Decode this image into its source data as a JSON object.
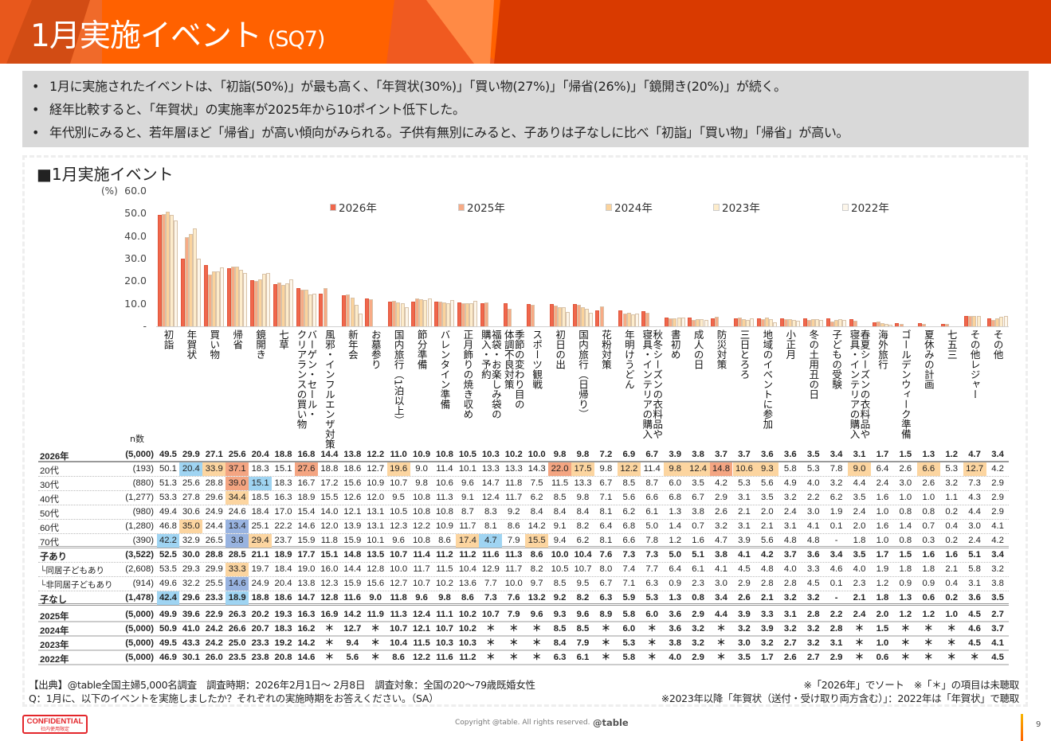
{
  "header": {
    "title": "1月実施イベント",
    "code": "(SQ7)"
  },
  "summary": [
    "1月に実施されたイベントは、「初詣(50%)」が最も高く、「年賀状(30%)」「買い物(27%)」「帰省(26%)」「鏡開き(20%)」が続く。",
    "経年比較すると、「年賀状」の実施率が2025年から10ポイント低下した。",
    "年代別にみると、若年層ほど「帰省」が高い傾向がみられる。子供有無別にみると、子ありは子なしに比べ「初詣」「買い物」「帰省」が高い。"
  ],
  "chart_data": {
    "type": "bar",
    "title": "■1月実施イベント",
    "ylabel": "(%)",
    "ylim": [
      0,
      60
    ],
    "yticks": [
      "60.0",
      "50.0",
      "40.0",
      "30.0",
      "20.0",
      "10.0",
      "-"
    ],
    "legend_position": "top",
    "n_label": "n数",
    "categories": [
      "初詣",
      "年賀状",
      "買い物",
      "帰省",
      "鏡開き",
      "七草",
      "バーゲン・セール・\nクリアランスの買い物",
      "風邪・インフルエンザ対策",
      "新年会",
      "お墓参り",
      "国内旅行（1泊以上）",
      "節分準備",
      "バレンタイン準備",
      "正月飾りの焼き収め",
      "福袋・お楽しみ袋の\n購入・予約",
      "季節の変わり目の\n体調不良対策",
      "スポーツ観戦",
      "初日の出",
      "国内旅行（日帰り）",
      "花粉対策",
      "年明けうどん",
      "秋冬シーズンの衣料品や\n寝具・インテリアの購入",
      "書初め",
      "成人の日",
      "防災対策",
      "三日とろろ",
      "地域のイベントに参加",
      "小正月",
      "冬の土用丑の日",
      "子どもの受験",
      "春夏シーズンの衣料品や\n寝具・インテリアの購入",
      "海外旅行",
      "ゴールデンウィーク準備",
      "夏休みの計画",
      "七五三",
      "その他レジャー",
      "その他"
    ],
    "series_colors": [
      "#f0674c",
      "#f7ab86",
      "#fbd39c",
      "#fdeccb",
      "#fdf6ea"
    ],
    "rows": [
      {
        "label": "2026年",
        "n": "(5,000)",
        "bold": true,
        "series": true,
        "values": [
          "49.5",
          "29.9",
          "27.1",
          "25.6",
          "20.4",
          "18.8",
          "16.8",
          "14.4",
          "13.8",
          "12.2",
          "11.0",
          "10.9",
          "10.8",
          "10.5",
          "10.3",
          "10.2",
          "10.0",
          "9.8",
          "9.8",
          "7.2",
          "6.9",
          "6.7",
          "3.9",
          "3.8",
          "3.7",
          "3.7",
          "3.6",
          "3.6",
          "3.5",
          "3.4",
          "3.1",
          "1.7",
          "1.5",
          "1.3",
          "1.2",
          "4.7",
          "3.4"
        ]
      },
      {
        "label": "20代",
        "n": "(193)",
        "values": [
          "50.1",
          "20.4",
          "33.9",
          "37.1",
          "18.3",
          "15.1",
          "27.6",
          "18.8",
          "18.6",
          "12.7",
          "19.6",
          "9.0",
          "11.4",
          "10.1",
          "13.3",
          "13.3",
          "14.3",
          "22.0",
          "17.5",
          "9.8",
          "12.2",
          "11.4",
          "9.8",
          "12.4",
          "14.8",
          "10.6",
          "9.3",
          "5.8",
          "5.3",
          "7.8",
          "9.0",
          "6.4",
          "2.6",
          "6.6",
          "5.3",
          "12.7",
          "4.2"
        ],
        "hl": {
          "1": "dn1",
          "2": "up1",
          "3": "up2",
          "6": "up2",
          "10": "up1",
          "17": "up2",
          "18": "up1",
          "20": "up1",
          "22": "up1",
          "23": "up1",
          "24": "up2",
          "25": "up1",
          "26": "up1",
          "30": "up1",
          "33": "up1",
          "35": "up1"
        }
      },
      {
        "label": "30代",
        "n": "(880)",
        "values": [
          "51.3",
          "25.6",
          "28.8",
          "39.0",
          "15.1",
          "18.3",
          "16.7",
          "17.2",
          "15.6",
          "10.9",
          "10.7",
          "9.8",
          "10.6",
          "9.6",
          "14.7",
          "11.8",
          "7.5",
          "11.5",
          "13.3",
          "6.7",
          "8.5",
          "8.7",
          "6.0",
          "3.5",
          "4.2",
          "5.3",
          "5.6",
          "4.9",
          "4.0",
          "3.2",
          "4.4",
          "2.4",
          "3.0",
          "2.6",
          "3.2",
          "7.3",
          "2.9"
        ],
        "hl": {
          "3": "up2",
          "4": "dn1"
        }
      },
      {
        "label": "40代",
        "n": "(1,277)",
        "values": [
          "53.3",
          "27.8",
          "29.6",
          "34.4",
          "18.5",
          "16.3",
          "18.9",
          "15.5",
          "12.6",
          "12.0",
          "9.5",
          "10.8",
          "11.3",
          "9.1",
          "12.4",
          "11.7",
          "6.2",
          "8.5",
          "9.8",
          "7.1",
          "5.6",
          "6.6",
          "6.8",
          "6.7",
          "2.9",
          "3.1",
          "3.5",
          "3.2",
          "2.2",
          "6.2",
          "3.5",
          "1.6",
          "1.0",
          "1.0",
          "1.1",
          "4.3",
          "2.9"
        ],
        "hl": {
          "3": "up1"
        }
      },
      {
        "label": "50代",
        "n": "(980)",
        "values": [
          "49.4",
          "30.6",
          "24.9",
          "24.6",
          "18.4",
          "17.0",
          "15.4",
          "14.0",
          "12.1",
          "13.1",
          "10.5",
          "10.8",
          "10.8",
          "8.7",
          "8.3",
          "9.2",
          "8.4",
          "8.4",
          "8.4",
          "8.1",
          "6.2",
          "6.1",
          "1.3",
          "3.8",
          "2.6",
          "2.1",
          "2.0",
          "2.4",
          "3.0",
          "1.9",
          "2.4",
          "1.0",
          "0.8",
          "0.8",
          "0.2",
          "4.4",
          "2.9"
        ]
      },
      {
        "label": "60代",
        "n": "(1,280)",
        "values": [
          "46.8",
          "35.0",
          "24.4",
          "13.4",
          "25.1",
          "22.2",
          "14.6",
          "12.0",
          "13.9",
          "13.1",
          "12.3",
          "12.2",
          "10.9",
          "11.7",
          "8.1",
          "8.6",
          "14.2",
          "9.1",
          "8.2",
          "6.4",
          "6.8",
          "5.0",
          "1.4",
          "0.7",
          "3.2",
          "3.1",
          "2.1",
          "3.1",
          "4.1",
          "0.1",
          "2.0",
          "1.6",
          "1.4",
          "0.7",
          "0.4",
          "3.0",
          "4.1"
        ],
        "hl": {
          "1": "up1",
          "3": "dn2"
        }
      },
      {
        "label": "70代",
        "n": "(390)",
        "values": [
          "42.2",
          "32.9",
          "26.5",
          "3.8",
          "29.4",
          "23.7",
          "15.9",
          "11.8",
          "15.9",
          "10.1",
          "9.6",
          "10.8",
          "8.6",
          "17.4",
          "4.7",
          "7.9",
          "15.5",
          "9.4",
          "6.2",
          "8.1",
          "6.6",
          "7.8",
          "1.2",
          "1.6",
          "4.7",
          "3.9",
          "5.6",
          "4.8",
          "4.8",
          "-",
          "1.8",
          "1.0",
          "0.8",
          "0.3",
          "0.2",
          "2.4",
          "4.2"
        ],
        "hl": {
          "0": "dn1",
          "3": "dn2",
          "4": "up1",
          "13": "up1",
          "14": "dn1",
          "16": "up1"
        }
      },
      {
        "label": "子あり",
        "n": "(3,522)",
        "bold": true,
        "values": [
          "52.5",
          "30.0",
          "28.8",
          "28.5",
          "21.1",
          "18.9",
          "17.7",
          "15.1",
          "14.8",
          "13.5",
          "10.7",
          "11.4",
          "11.2",
          "11.2",
          "11.6",
          "11.3",
          "8.6",
          "10.0",
          "10.4",
          "7.6",
          "7.3",
          "7.3",
          "5.0",
          "5.1",
          "3.8",
          "4.1",
          "4.2",
          "3.7",
          "3.6",
          "3.4",
          "3.5",
          "1.7",
          "1.5",
          "1.6",
          "1.6",
          "5.1",
          "3.4"
        ]
      },
      {
        "label": "└同居子どもあり",
        "n": "(2,608)",
        "values": [
          "53.5",
          "29.3",
          "29.9",
          "33.3",
          "19.7",
          "18.4",
          "19.0",
          "16.0",
          "14.4",
          "12.8",
          "10.0",
          "11.7",
          "11.5",
          "10.4",
          "12.9",
          "11.7",
          "8.2",
          "10.5",
          "10.7",
          "8.0",
          "7.4",
          "7.7",
          "6.4",
          "6.1",
          "4.1",
          "4.5",
          "4.8",
          "4.0",
          "3.3",
          "4.6",
          "4.0",
          "1.9",
          "1.8",
          "1.8",
          "2.1",
          "5.8",
          "3.2"
        ],
        "hl": {
          "3": "up1"
        }
      },
      {
        "label": "└非同居子どもあり",
        "n": "(914)",
        "values": [
          "49.6",
          "32.2",
          "25.5",
          "14.6",
          "24.9",
          "20.4",
          "13.8",
          "12.3",
          "15.9",
          "15.6",
          "12.7",
          "10.7",
          "10.2",
          "13.6",
          "7.7",
          "10.0",
          "9.7",
          "8.5",
          "9.5",
          "6.7",
          "7.1",
          "6.3",
          "0.9",
          "2.3",
          "3.0",
          "2.9",
          "2.8",
          "2.8",
          "4.5",
          "0.1",
          "2.3",
          "1.2",
          "0.9",
          "0.9",
          "0.4",
          "3.1",
          "3.8"
        ],
        "hl": {
          "3": "dn2"
        }
      },
      {
        "label": "子なし",
        "n": "(1,478)",
        "bold": true,
        "values": [
          "42.4",
          "29.6",
          "23.3",
          "18.9",
          "18.8",
          "18.6",
          "14.7",
          "12.8",
          "11.6",
          "9.0",
          "11.8",
          "9.6",
          "9.8",
          "8.6",
          "7.3",
          "7.6",
          "13.2",
          "9.2",
          "8.2",
          "6.3",
          "5.9",
          "5.3",
          "1.3",
          "0.8",
          "3.4",
          "2.6",
          "2.1",
          "3.2",
          "3.2",
          "-",
          "2.1",
          "1.8",
          "1.3",
          "0.6",
          "0.2",
          "3.6",
          "3.5"
        ],
        "hl": {
          "0": "dn1",
          "3": "dn1"
        }
      },
      {
        "label": "2025年",
        "n": "(5,000)",
        "bold": true,
        "series": true,
        "values": [
          "49.9",
          "39.6",
          "22.9",
          "26.3",
          "20.2",
          "19.3",
          "16.3",
          "16.9",
          "14.2",
          "11.9",
          "11.3",
          "12.4",
          "11.1",
          "10.2",
          "10.7",
          "7.9",
          "9.6",
          "9.3",
          "9.6",
          "8.9",
          "5.8",
          "6.0",
          "3.6",
          "2.9",
          "4.4",
          "3.9",
          "3.3",
          "3.1",
          "2.8",
          "2.2",
          "2.4",
          "2.0",
          "1.2",
          "1.2",
          "1.0",
          "4.5",
          "2.7"
        ]
      },
      {
        "label": "2024年",
        "n": "(5,000)",
        "bold": true,
        "series": true,
        "values": [
          "50.9",
          "41.0",
          "24.2",
          "26.6",
          "20.7",
          "18.3",
          "16.2",
          "＊",
          "12.7",
          "＊",
          "10.7",
          "12.1",
          "10.7",
          "10.2",
          "＊",
          "＊",
          "＊",
          "8.5",
          "8.5",
          "＊",
          "6.0",
          "＊",
          "3.6",
          "3.2",
          "＊",
          "3.2",
          "3.9",
          "3.2",
          "3.2",
          "2.8",
          "＊",
          "1.5",
          "＊",
          "＊",
          "＊",
          "4.6",
          "3.7"
        ]
      },
      {
        "label": "2023年",
        "n": "(5,000)",
        "bold": true,
        "series": true,
        "values": [
          "49.5",
          "43.3",
          "24.2",
          "25.0",
          "23.3",
          "19.2",
          "14.2",
          "＊",
          "9.4",
          "＊",
          "10.4",
          "11.5",
          "10.3",
          "10.3",
          "＊",
          "＊",
          "＊",
          "8.4",
          "7.9",
          "＊",
          "5.3",
          "＊",
          "3.8",
          "3.2",
          "＊",
          "3.0",
          "3.2",
          "2.7",
          "3.2",
          "3.1",
          "＊",
          "1.0",
          "＊",
          "＊",
          "＊",
          "4.5",
          "4.1"
        ]
      },
      {
        "label": "2022年",
        "n": "(5,000)",
        "bold": true,
        "series": true,
        "values": [
          "46.9",
          "30.1",
          "26.0",
          "23.5",
          "23.8",
          "20.8",
          "14.6",
          "＊",
          "5.6",
          "＊",
          "8.6",
          "12.2",
          "11.6",
          "11.2",
          "＊",
          "＊",
          "＊",
          "6.3",
          "6.1",
          "＊",
          "5.8",
          "＊",
          "4.0",
          "2.9",
          "＊",
          "3.5",
          "1.7",
          "2.6",
          "2.7",
          "2.9",
          "＊",
          "0.6",
          "＊",
          "＊",
          "＊",
          "＊",
          "4.5"
        ]
      }
    ]
  },
  "footer": {
    "source": "【出典】@table全国主婦5,000名調査　調査時期：2026年2月1日～ 2月8日　調査対象：全国の20～79歳既婚女性",
    "question": "Q：1月に、以下のイベントを実施しましたか？それぞれの実施時期をお答えください。（SA）",
    "note1": "※「2026年」でソート　※「＊」の項目は未聴取",
    "note2": "※2023年以降「年賀状（送付・受け取り両方含む）」：2022年は「年賀状」で聴取",
    "confidential": "CONFIDENTIAL",
    "confidential_sub": "社内使用限定",
    "copyright": "Copyright @table. All rights reserved.",
    "logo": "@table",
    "page": "9"
  }
}
